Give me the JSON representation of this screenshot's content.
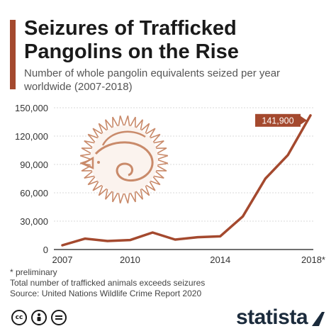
{
  "header": {
    "title": "Seizures of Trafficked Pangolins on the Rise",
    "subtitle": "Number of whole pangolin equivalents seized per year worldwide (2007-2018)"
  },
  "chart_data": {
    "type": "line",
    "x": [
      2007,
      2008,
      2009,
      2010,
      2011,
      2012,
      2013,
      2014,
      2015,
      2016,
      2017,
      2018
    ],
    "series": [
      {
        "values": [
          4500,
          11500,
          9000,
          10000,
          18000,
          10500,
          13000,
          14000,
          35000,
          75000,
          100000,
          141900
        ]
      }
    ],
    "x_tick_labels": [
      "2007",
      "2010",
      "2014",
      "2018*"
    ],
    "x_ticks": [
      2007,
      2010,
      2014,
      2018
    ],
    "y_tick_labels": [
      "0",
      "30,000",
      "60,000",
      "90,000",
      "120,000",
      "150,000"
    ],
    "y_ticks": [
      0,
      30000,
      60000,
      90000,
      120000,
      150000
    ],
    "ylim": [
      0,
      150000
    ],
    "xlim": [
      2007,
      2018
    ],
    "grid": "horizontal",
    "annotation": "141,900",
    "line_color": "#a4492e",
    "title": "",
    "xlabel": "",
    "ylabel": ""
  },
  "footer": {
    "note1": "* preliminary",
    "note2": "Total number  of trafficked animals exceeds seizures",
    "source": "Source: United Nations Wildlife Crime Report 2020"
  },
  "branding": {
    "logo_text": "statista",
    "icons": [
      "cc-icon",
      "person-icon",
      "equals-icon"
    ]
  },
  "colors": {
    "accent": "#a4492e",
    "grid": "#d9d9d9",
    "logo": "#1b2b3c"
  }
}
